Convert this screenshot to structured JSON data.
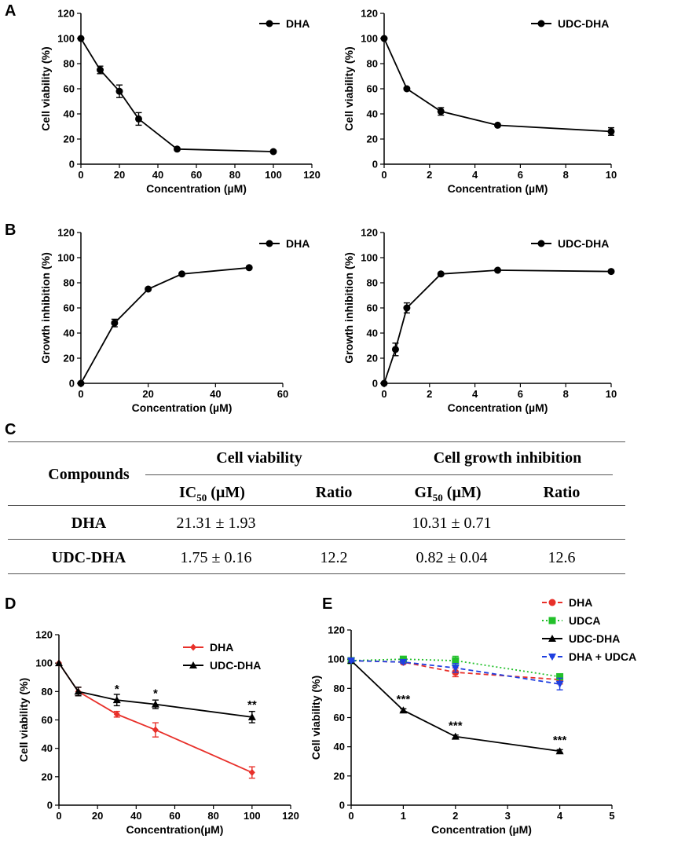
{
  "panel_letters": [
    "A",
    "B",
    "C",
    "D",
    "E"
  ],
  "chart_data": [
    {
      "id": "A1",
      "type": "line",
      "panel": "A",
      "xlabel": "Concentration (µM)",
      "ylabel": "Cell viability (%)",
      "xlim": [
        0,
        120
      ],
      "ylim": [
        0,
        120
      ],
      "xticks": [
        0,
        20,
        40,
        60,
        80,
        100,
        120
      ],
      "yticks": [
        0,
        20,
        40,
        60,
        80,
        100,
        120
      ],
      "legend_position": "top-right",
      "series": [
        {
          "name": "DHA",
          "color": "#000000",
          "marker": "circle",
          "x": [
            0,
            10,
            20,
            30,
            50,
            100
          ],
          "y": [
            100,
            75,
            58,
            36,
            12,
            10
          ],
          "err": [
            0,
            3,
            5,
            5,
            1,
            1
          ]
        }
      ]
    },
    {
      "id": "A2",
      "type": "line",
      "panel": "A",
      "xlabel": "Concentration (µM)",
      "ylabel": "Cell viability (%)",
      "xlim": [
        0,
        10
      ],
      "ylim": [
        0,
        120
      ],
      "xticks": [
        0,
        2,
        4,
        6,
        8,
        10
      ],
      "yticks": [
        0,
        20,
        40,
        60,
        80,
        100,
        120
      ],
      "legend_position": "top-right",
      "series": [
        {
          "name": "UDC-DHA",
          "color": "#000000",
          "marker": "circle",
          "x": [
            0,
            1,
            2.5,
            5,
            10
          ],
          "y": [
            100,
            60,
            42,
            31,
            26
          ],
          "err": [
            0,
            1,
            3,
            1,
            3
          ]
        }
      ]
    },
    {
      "id": "B1",
      "type": "line",
      "panel": "B",
      "xlabel": "Concentration (µM)",
      "ylabel": "Growth inhibition (%)",
      "xlim": [
        0,
        60
      ],
      "ylim": [
        0,
        120
      ],
      "xticks": [
        0,
        20,
        40,
        60
      ],
      "yticks": [
        0,
        20,
        40,
        60,
        80,
        100,
        120
      ],
      "legend_position": "top-right",
      "series": [
        {
          "name": "DHA",
          "color": "#000000",
          "marker": "circle",
          "x": [
            0,
            10,
            20,
            30,
            50
          ],
          "y": [
            0,
            48,
            75,
            87,
            92
          ],
          "err": [
            0,
            3,
            1,
            1,
            1
          ]
        }
      ]
    },
    {
      "id": "B2",
      "type": "line",
      "panel": "B",
      "xlabel": "Concentration (µM)",
      "ylabel": "Growth inhibition (%)",
      "xlim": [
        0,
        10
      ],
      "ylim": [
        0,
        120
      ],
      "xticks": [
        0,
        2,
        4,
        6,
        8,
        10
      ],
      "yticks": [
        0,
        20,
        40,
        60,
        80,
        100,
        120
      ],
      "legend_position": "top-right",
      "series": [
        {
          "name": "UDC-DHA",
          "color": "#000000",
          "marker": "circle",
          "x": [
            0,
            0.5,
            1,
            2.5,
            5,
            10
          ],
          "y": [
            0,
            27,
            60,
            87,
            90,
            89
          ],
          "err": [
            0,
            5,
            4,
            1,
            1,
            1
          ]
        }
      ]
    },
    {
      "id": "D",
      "type": "line",
      "panel": "D",
      "xlabel": "Concentration(µM)",
      "ylabel": "Cell viability (%)",
      "xlim": [
        0,
        120
      ],
      "ylim": [
        0,
        120
      ],
      "xticks": [
        0,
        20,
        40,
        60,
        80,
        100,
        120
      ],
      "yticks": [
        0,
        20,
        40,
        60,
        80,
        100,
        120
      ],
      "legend_position": "top-right",
      "series": [
        {
          "name": "DHA",
          "color": "#e8302a",
          "marker": "diamond",
          "dash": "",
          "x": [
            0,
            10,
            30,
            50,
            100
          ],
          "y": [
            100,
            80,
            64,
            53,
            23
          ],
          "err": [
            0,
            3,
            2,
            5,
            4
          ]
        },
        {
          "name": "UDC-DHA",
          "color": "#000000",
          "marker": "triangle",
          "dash": "",
          "x": [
            0,
            10,
            30,
            50,
            100
          ],
          "y": [
            100,
            80,
            74,
            71,
            62
          ],
          "err": [
            0,
            3,
            4,
            3,
            4
          ]
        }
      ],
      "annotations": [
        {
          "x": 30,
          "y": 79,
          "text": "*"
        },
        {
          "x": 50,
          "y": 76,
          "text": "*"
        },
        {
          "x": 100,
          "y": 68,
          "text": "**"
        }
      ]
    },
    {
      "id": "E",
      "type": "line",
      "panel": "E",
      "xlabel": "Concentration (µM)",
      "ylabel": "Cell viability (%)",
      "xlim": [
        0,
        5
      ],
      "ylim": [
        0,
        120
      ],
      "xticks": [
        0,
        1,
        2,
        3,
        4,
        5
      ],
      "yticks": [
        0,
        20,
        40,
        60,
        80,
        100,
        120
      ],
      "legend_position": "top-right",
      "series": [
        {
          "name": "DHA",
          "color": "#e8302a",
          "marker": "circle",
          "dash": "6,4",
          "x": [
            0,
            1,
            2,
            4
          ],
          "y": [
            99,
            98,
            91,
            86
          ],
          "err": [
            1,
            1,
            3,
            3
          ]
        },
        {
          "name": "UDCA",
          "color": "#22c02a",
          "marker": "square",
          "dash": "2,3",
          "x": [
            0,
            1,
            2,
            4
          ],
          "y": [
            99,
            100,
            99,
            88
          ],
          "err": [
            1,
            1,
            3,
            2
          ]
        },
        {
          "name": "UDC-DHA",
          "color": "#000000",
          "marker": "triangle",
          "dash": "",
          "x": [
            0,
            1,
            2,
            4
          ],
          "y": [
            99,
            65,
            47,
            37
          ],
          "err": [
            1,
            1,
            1,
            1
          ]
        },
        {
          "name": "DHA + UDCA",
          "color": "#1f3fe0",
          "marker": "triangle-down",
          "dash": "6,4",
          "x": [
            0,
            1,
            2,
            4
          ],
          "y": [
            99,
            98,
            94,
            83
          ],
          "err": [
            1,
            1,
            3,
            4
          ]
        }
      ],
      "annotations": [
        {
          "x": 1,
          "y": 70,
          "text": "***"
        },
        {
          "x": 2,
          "y": 52,
          "text": "***"
        },
        {
          "x": 4,
          "y": 42,
          "text": "***"
        }
      ]
    }
  ],
  "table": {
    "header_compounds": "Compounds",
    "header_viability": "Cell viability",
    "header_growth": "Cell growth inhibition",
    "sub_ic50_main": "IC",
    "sub_ic50_sub": "50",
    "sub_ic50_unit": " (µM)",
    "sub_ratio1": "Ratio",
    "sub_gi50_main": "GI",
    "sub_gi50_sub": "50",
    "sub_gi50_unit": " (µM)",
    "sub_ratio2": "Ratio",
    "rows": [
      {
        "compound": "DHA",
        "ic50": "21.31 ± 1.93",
        "ratio1": "",
        "gi50": "10.31 ± 0.71",
        "ratio2": ""
      },
      {
        "compound": "UDC-DHA",
        "ic50": "1.75 ± 0.16",
        "ratio1": "12.2",
        "gi50": "0.82 ± 0.04",
        "ratio2": "12.6"
      }
    ]
  }
}
